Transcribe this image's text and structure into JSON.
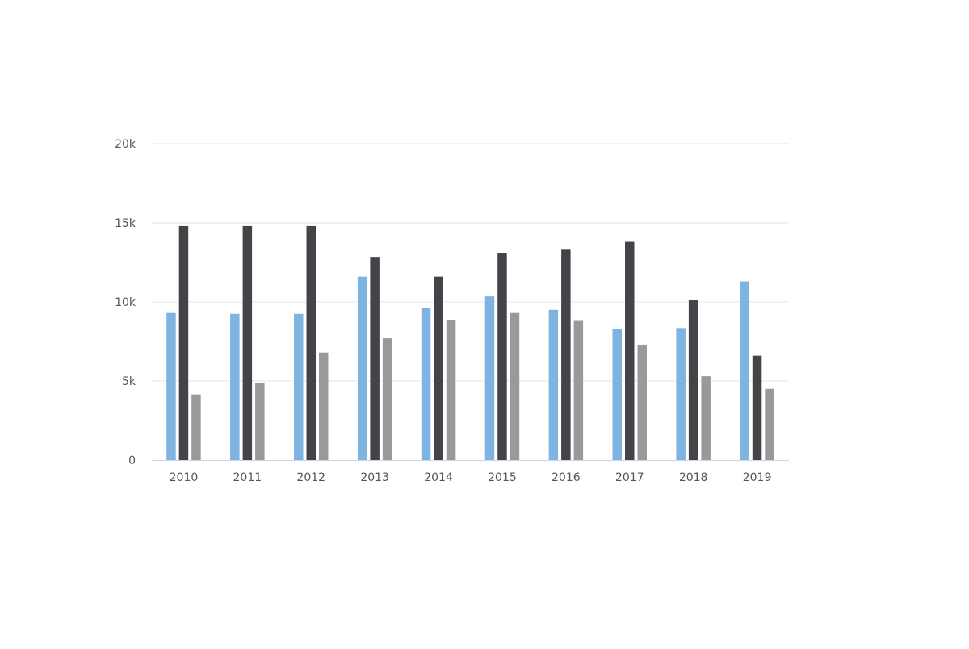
{
  "chart_data": {
    "type": "bar",
    "title": "",
    "xlabel": "",
    "ylabel": "",
    "categories": [
      "2010",
      "2011",
      "2012",
      "2013",
      "2014",
      "2015",
      "2016",
      "2017",
      "2018",
      "2019"
    ],
    "series": [
      {
        "color": "#7eb4e2",
        "values": [
          9300,
          9250,
          9250,
          11600,
          9600,
          10350,
          9500,
          8300,
          8350,
          11300
        ]
      },
      {
        "color": "#434348",
        "values": [
          14800,
          14800,
          14800,
          12850,
          11600,
          13100,
          13300,
          13800,
          10100,
          6600
        ]
      },
      {
        "color": "#9c9898",
        "values": [
          4150,
          4850,
          6800,
          7700,
          8850,
          9300,
          8800,
          7300,
          5300,
          4500
        ]
      }
    ],
    "ylim": [
      0,
      20000
    ],
    "yticks": [
      {
        "value": 0,
        "label": "0"
      },
      {
        "value": 5000,
        "label": "5k"
      },
      {
        "value": 10000,
        "label": "10k"
      },
      {
        "value": 15000,
        "label": "15k"
      },
      {
        "value": 20000,
        "label": "20k"
      }
    ],
    "grid": true,
    "legend": "none",
    "colors": {
      "grid": "#e6e6e6",
      "axis": "#ccd6eb",
      "tick_label": "#555555"
    }
  }
}
